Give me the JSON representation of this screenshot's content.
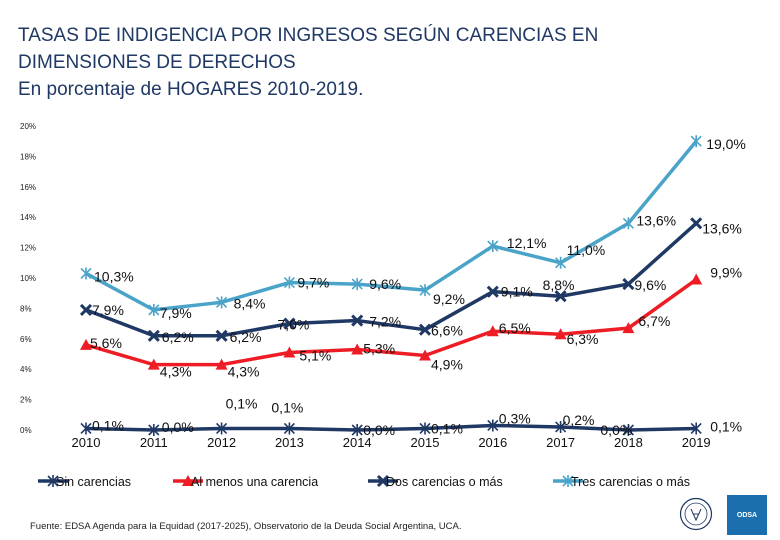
{
  "title_lines": [
    "TASAS DE INDIGENCIA POR INGRESOS SEGÚN CARENCIAS EN",
    "DIMENSIONES DE DERECHOS",
    "En porcentaje de HOGARES 2010-2019."
  ],
  "footnote": "Fuente: EDSA Agenda para la Equidad (2017-2025), Observatorio de la Deuda Social Argentina, UCA.",
  "logo_text": "ODSA",
  "chart_data": {
    "type": "line",
    "title": "TASAS DE INDIGENCIA POR INGRESOS SEGÚN CARENCIAS EN DIMENSIONES DE DERECHOS - En porcentaje de HOGARES 2010-2019.",
    "xlabel": "",
    "ylabel": "",
    "categories": [
      "2010",
      "2011",
      "2012",
      "2013",
      "2014",
      "2015",
      "2016",
      "2017",
      "2018",
      "2019"
    ],
    "y_ticks": [
      "0%",
      "2%",
      "4%",
      "6%",
      "8%",
      "10%",
      "12%",
      "14%",
      "16%",
      "18%",
      "20%"
    ],
    "ylim": [
      0,
      20
    ],
    "legend_position": "bottom",
    "series": [
      {
        "name": "Sin carencias",
        "color": "#1f3864",
        "marker": "star",
        "values": [
          0.1,
          0.0,
          0.1,
          0.1,
          0.0,
          0.1,
          0.3,
          0.2,
          0.0,
          0.1
        ],
        "labels": [
          "0,1%",
          "0,0%",
          "0,1%",
          "0,1%",
          "0,0%",
          "0,1%",
          "0,3%",
          "0,2%",
          "0,0%",
          "0,1%"
        ]
      },
      {
        "name": "Al menos una carencia",
        "color": "#ee1c24",
        "marker": "triangle",
        "values": [
          5.6,
          4.3,
          4.3,
          5.1,
          5.3,
          4.9,
          6.5,
          6.3,
          6.7,
          9.9
        ],
        "labels": [
          "5,6%",
          "4,3%",
          "4,3%",
          "5,1%",
          "5,3%",
          "4,9%",
          "6,5%",
          "6,3%",
          "6,7%",
          "9,9%"
        ]
      },
      {
        "name": "Dos carencias o más",
        "color": "#1f3864",
        "marker": "x",
        "values": [
          7.9,
          6.2,
          6.2,
          7.0,
          7.2,
          6.6,
          9.1,
          8.8,
          9.6,
          13.6
        ],
        "labels": [
          "7,9%",
          "6,2%",
          "6,2%",
          "7,0%",
          "7,2%",
          "6,6%",
          "9,1%",
          "8,8%",
          "9,6%",
          "13,6%"
        ]
      },
      {
        "name": "Tres carencias o más",
        "color": "#4aa3c8",
        "marker": "star",
        "values": [
          10.3,
          7.9,
          8.4,
          9.7,
          9.6,
          9.2,
          12.1,
          11.0,
          13.6,
          19.0
        ],
        "labels": [
          "10,3%",
          "7,9%",
          "8,4%",
          "9,7%",
          "9,6%",
          "9,2%",
          "12,1%",
          "11,0%",
          "13,6%",
          "19,0%"
        ]
      }
    ]
  }
}
